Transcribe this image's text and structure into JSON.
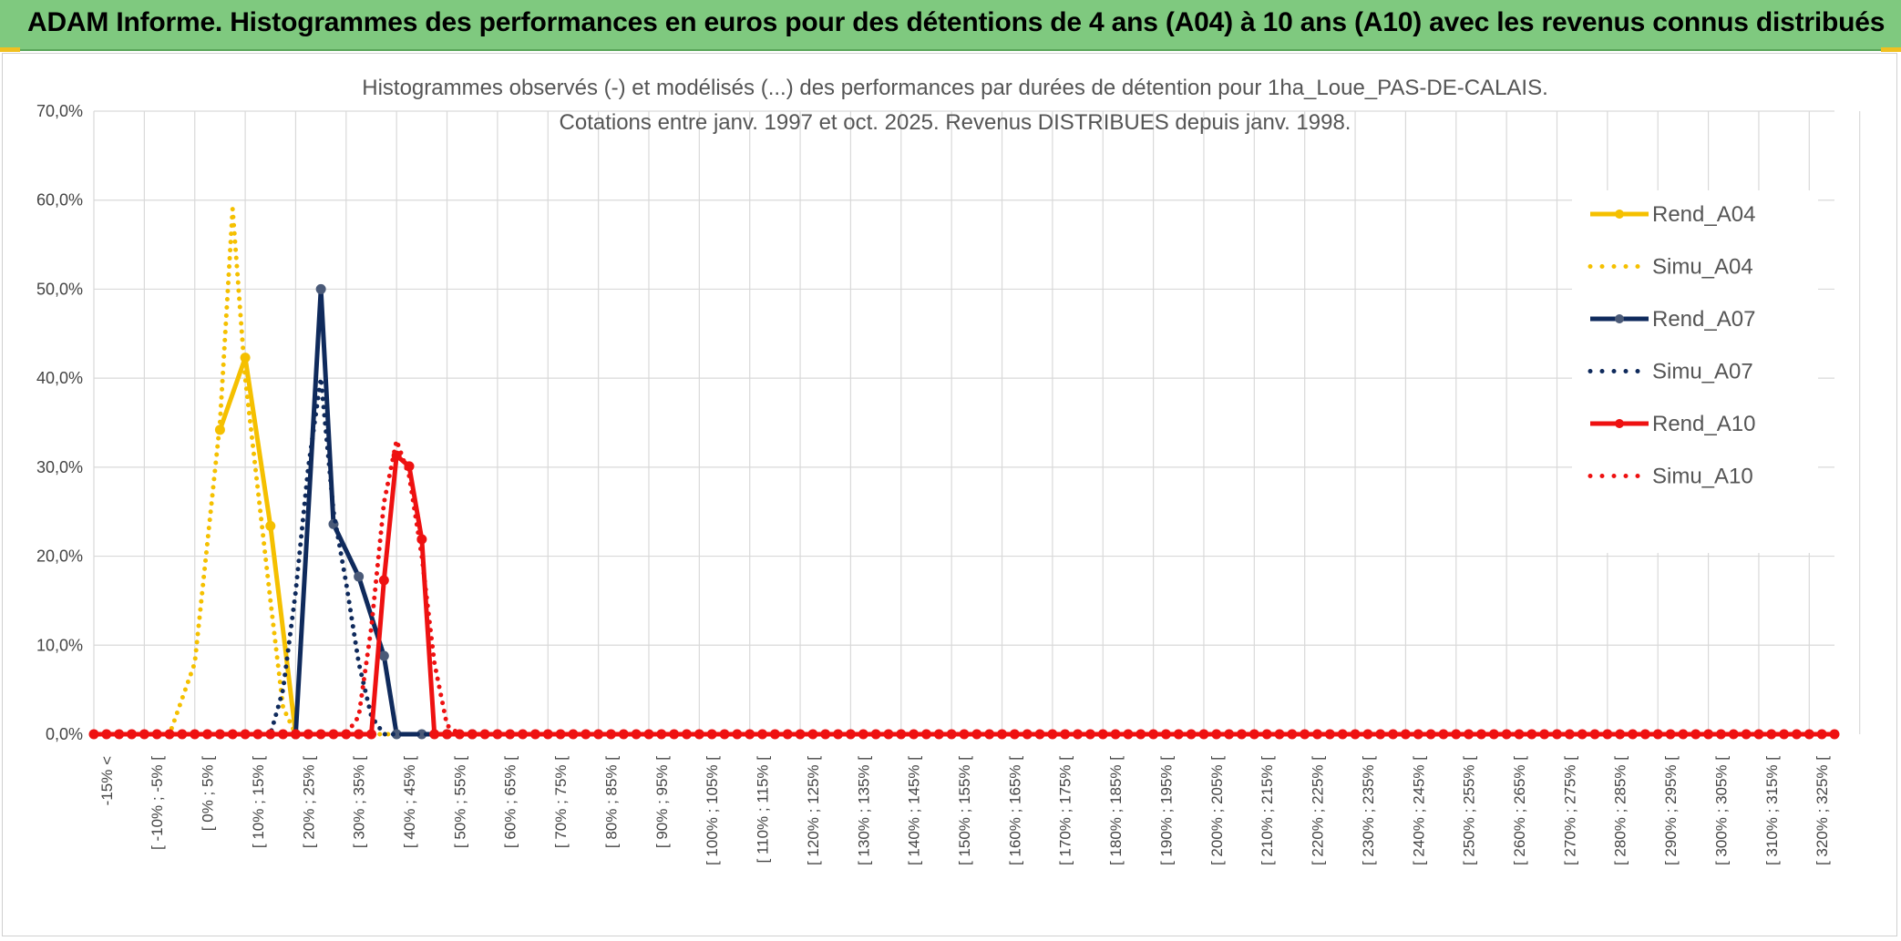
{
  "header": {
    "title": "ADAM Informe. Histogrammes des performances en euros pour des détentions de 4 ans (A04) à 10 ans (A10) avec les revenus connus distribués"
  },
  "colors": {
    "banner": "#7fc97f",
    "yellow": "#f5c000",
    "navy": "#0f2a5c",
    "red": "#ee1111"
  },
  "chart_data": {
    "type": "line",
    "title": "Histogrammes observés (-) et modélisés (...) des performances par durées de détention pour 1ha_Loue_PAS-DE-CALAIS.",
    "subtitle": "Cotations entre janv. 1997 et oct. 2025. Revenus DISTRIBUES depuis janv. 1998.",
    "ylim": [
      0,
      0.7
    ],
    "y_ticks": [
      "0,0%",
      "10,0%",
      "20,0%",
      "30,0%",
      "40,0%",
      "50,0%",
      "60,0%",
      "70,0%"
    ],
    "x_labels": [
      "-15% <",
      "[ -10% ; -5% [",
      "[ 0% ; 5% [",
      "[ 10% ; 15% [",
      "[ 20% ; 25% [",
      "[ 30% ; 35% [",
      "[ 40% ; 45% [",
      "[ 50% ; 55% [",
      "[ 60% ; 65% [",
      "[ 70% ; 75% [",
      "[ 80% ; 85% [",
      "[ 90% ; 95% [",
      "[ 100% ; 105% [",
      "[ 110% ; 115% [",
      "[ 120% ; 125% [",
      "[ 130% ; 135% [",
      "[ 140% ; 145% [",
      "[ 150% ; 155% [",
      "[ 160% ; 165% [",
      "[ 170% ; 175% [",
      "[ 180% ; 185% [",
      "[ 190% ; 195% [",
      "[ 200% ; 205% [",
      "[ 210% ; 215% [",
      "[ 220% ; 225% [",
      "[ 230% ; 235% [",
      "[ 240% ; 245% [",
      "[ 250% ; 255% [",
      "[ 260% ; 265% [",
      "[ 270% ; 275% [",
      "[ 280% ; 285% [",
      "[ 290% ; 295% [",
      "[ 300% ; 305% [",
      "[ 310% ; 315% [",
      "[ 320% ; 325% ["
    ],
    "x_start": -15,
    "x_step": 5,
    "x_end": 330,
    "series": [
      {
        "name": "Rend_A04",
        "style": "solid",
        "color": "#f5c000",
        "points": [
          [
            10,
            0.342
          ],
          [
            15,
            0.423
          ],
          [
            20,
            0.234
          ],
          [
            25,
            0.0
          ]
        ]
      },
      {
        "name": "Simu_A04",
        "style": "dotted",
        "color": "#f5c000",
        "points": [
          [
            -15,
            0
          ],
          [
            0,
            0
          ],
          [
            5,
            0.08
          ],
          [
            10,
            0.35
          ],
          [
            12.5,
            0.59
          ],
          [
            15,
            0.4
          ],
          [
            20,
            0.15
          ],
          [
            22.5,
            0.03
          ],
          [
            25,
            0
          ],
          [
            330,
            0
          ]
        ]
      },
      {
        "name": "Rend_A07",
        "style": "solid",
        "color": "#0f2a5c",
        "points": [
          [
            25,
            0.0
          ],
          [
            30,
            0.5
          ],
          [
            32.5,
            0.236
          ],
          [
            37.5,
            0.177
          ],
          [
            42.5,
            0.088
          ],
          [
            45,
            0.0
          ],
          [
            50,
            0.0
          ],
          [
            55,
            0.0
          ],
          [
            60,
            0.0
          ]
        ]
      },
      {
        "name": "Simu_A07",
        "style": "dotted",
        "color": "#0f2a5c",
        "points": [
          [
            -15,
            0
          ],
          [
            20,
            0
          ],
          [
            22.5,
            0.05
          ],
          [
            25,
            0.16
          ],
          [
            27.5,
            0.3
          ],
          [
            30,
            0.4
          ],
          [
            32.5,
            0.25
          ],
          [
            35,
            0.17
          ],
          [
            37.5,
            0.08
          ],
          [
            40,
            0.02
          ],
          [
            42.5,
            0
          ],
          [
            330,
            0
          ]
        ]
      },
      {
        "name": "Rend_A10",
        "style": "solid",
        "color": "#ee1111",
        "points": [
          [
            -15,
            0
          ],
          [
            -12.5,
            0
          ],
          [
            -10,
            0
          ],
          [
            -7.5,
            0
          ],
          [
            -5,
            0
          ],
          [
            -2.5,
            0
          ],
          [
            0,
            0
          ],
          [
            2.5,
            0
          ],
          [
            5,
            0
          ],
          [
            7.5,
            0
          ],
          [
            10,
            0
          ],
          [
            12.5,
            0
          ],
          [
            15,
            0
          ],
          [
            17.5,
            0
          ],
          [
            20,
            0
          ],
          [
            22.5,
            0
          ],
          [
            25,
            0
          ],
          [
            27.5,
            0
          ],
          [
            30,
            0
          ],
          [
            32.5,
            0
          ],
          [
            35,
            0
          ],
          [
            37.5,
            0
          ],
          [
            40,
            0
          ],
          [
            42.5,
            0.173
          ],
          [
            45,
            0.313
          ],
          [
            47.5,
            0.301
          ],
          [
            50,
            0.219
          ],
          [
            52.5,
            0
          ],
          [
            55,
            0
          ],
          [
            57.5,
            0
          ],
          [
            60,
            0
          ],
          [
            62.5,
            0
          ],
          [
            65,
            0
          ],
          [
            67.5,
            0
          ],
          [
            70,
            0
          ],
          [
            72.5,
            0
          ],
          [
            75,
            0
          ],
          [
            77.5,
            0
          ],
          [
            80,
            0
          ],
          [
            82.5,
            0
          ],
          [
            85,
            0
          ],
          [
            87.5,
            0
          ],
          [
            90,
            0
          ],
          [
            92.5,
            0
          ],
          [
            95,
            0
          ],
          [
            97.5,
            0
          ],
          [
            100,
            0
          ],
          [
            102.5,
            0
          ],
          [
            105,
            0
          ],
          [
            107.5,
            0
          ],
          [
            110,
            0
          ],
          [
            112.5,
            0
          ],
          [
            115,
            0
          ],
          [
            117.5,
            0
          ],
          [
            120,
            0
          ],
          [
            122.5,
            0
          ],
          [
            125,
            0
          ],
          [
            127.5,
            0
          ],
          [
            130,
            0
          ],
          [
            132.5,
            0
          ],
          [
            135,
            0
          ],
          [
            137.5,
            0
          ],
          [
            140,
            0
          ],
          [
            142.5,
            0
          ],
          [
            145,
            0
          ],
          [
            147.5,
            0
          ],
          [
            150,
            0
          ],
          [
            152.5,
            0
          ],
          [
            155,
            0
          ],
          [
            157.5,
            0
          ],
          [
            160,
            0
          ],
          [
            162.5,
            0
          ],
          [
            165,
            0
          ],
          [
            167.5,
            0
          ],
          [
            170,
            0
          ],
          [
            172.5,
            0
          ],
          [
            175,
            0
          ],
          [
            177.5,
            0
          ],
          [
            180,
            0
          ],
          [
            182.5,
            0
          ],
          [
            185,
            0
          ],
          [
            187.5,
            0
          ],
          [
            190,
            0
          ],
          [
            192.5,
            0
          ],
          [
            195,
            0
          ],
          [
            197.5,
            0
          ],
          [
            200,
            0
          ],
          [
            202.5,
            0
          ],
          [
            205,
            0
          ],
          [
            207.5,
            0
          ],
          [
            210,
            0
          ],
          [
            212.5,
            0
          ],
          [
            215,
            0
          ],
          [
            217.5,
            0
          ],
          [
            220,
            0
          ],
          [
            222.5,
            0
          ],
          [
            225,
            0
          ],
          [
            227.5,
            0
          ],
          [
            230,
            0
          ],
          [
            232.5,
            0
          ],
          [
            235,
            0
          ],
          [
            237.5,
            0
          ],
          [
            240,
            0
          ],
          [
            242.5,
            0
          ],
          [
            245,
            0
          ],
          [
            247.5,
            0
          ],
          [
            250,
            0
          ],
          [
            252.5,
            0
          ],
          [
            255,
            0
          ],
          [
            257.5,
            0
          ],
          [
            260,
            0
          ],
          [
            262.5,
            0
          ],
          [
            265,
            0
          ],
          [
            267.5,
            0
          ],
          [
            270,
            0
          ],
          [
            272.5,
            0
          ],
          [
            275,
            0
          ],
          [
            277.5,
            0
          ],
          [
            280,
            0
          ],
          [
            282.5,
            0
          ],
          [
            285,
            0
          ],
          [
            287.5,
            0
          ],
          [
            290,
            0
          ],
          [
            292.5,
            0
          ],
          [
            295,
            0
          ],
          [
            297.5,
            0
          ],
          [
            300,
            0
          ],
          [
            302.5,
            0
          ],
          [
            305,
            0
          ],
          [
            307.5,
            0
          ],
          [
            310,
            0
          ],
          [
            312.5,
            0
          ],
          [
            315,
            0
          ],
          [
            317.5,
            0
          ],
          [
            320,
            0
          ],
          [
            322.5,
            0
          ],
          [
            325,
            0
          ],
          [
            327.5,
            0
          ],
          [
            330,
            0
          ]
        ]
      },
      {
        "name": "Simu_A10",
        "style": "dotted",
        "color": "#ee1111",
        "points": [
          [
            -15,
            0
          ],
          [
            35,
            0
          ],
          [
            37.5,
            0.02
          ],
          [
            40,
            0.12
          ],
          [
            42.5,
            0.26
          ],
          [
            45,
            0.33
          ],
          [
            47.5,
            0.29
          ],
          [
            50,
            0.2
          ],
          [
            52.5,
            0.08
          ],
          [
            55,
            0.01
          ],
          [
            57.5,
            0
          ],
          [
            330,
            0
          ]
        ]
      }
    ],
    "legend_position": "right",
    "grid": true
  }
}
